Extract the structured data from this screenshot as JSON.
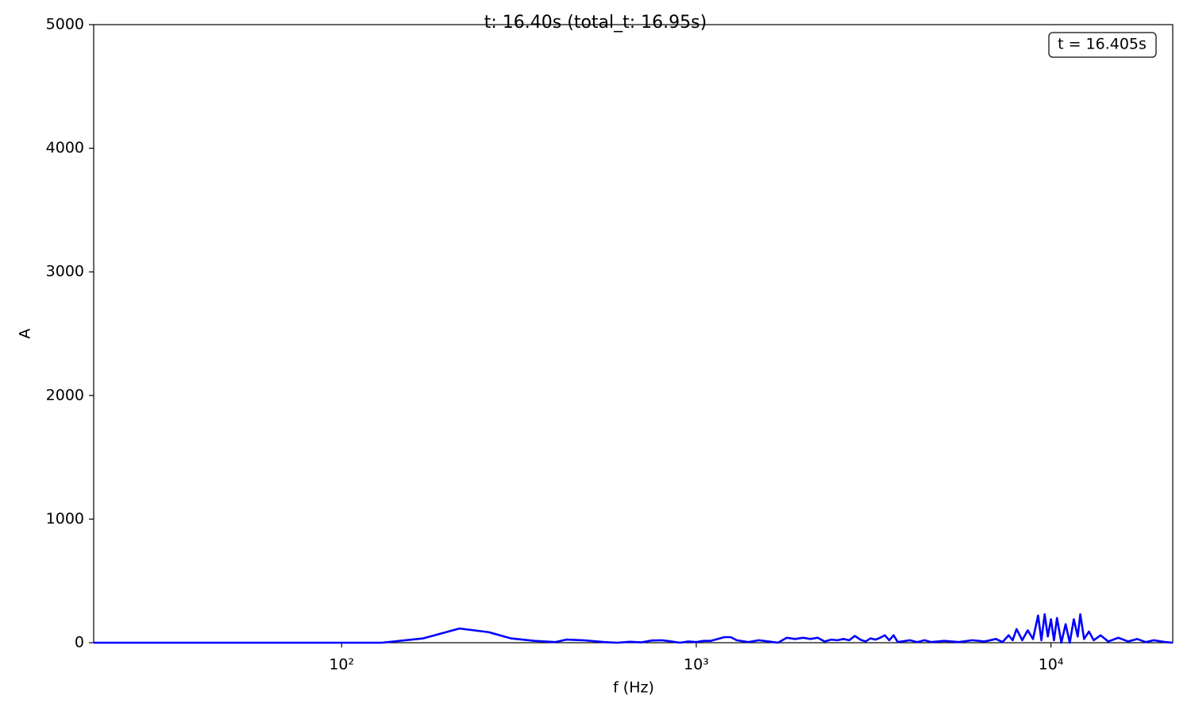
{
  "chart_data": {
    "type": "line",
    "title": "t: 16.40s  (total_t: 16.95s)",
    "annotation": "t = 16.405s",
    "x_label": "f (Hz)",
    "y_label": "A",
    "xscale": "log",
    "color": "#0000ff",
    "xlim": [
      20,
      22050
    ],
    "ylim": [
      0,
      5000
    ],
    "xticks": [
      {
        "value": 100,
        "label": "10²"
      },
      {
        "value": 1000,
        "label": "10³"
      },
      {
        "value": 10000,
        "label": "10⁴"
      }
    ],
    "yticks": [
      0,
      1000,
      2000,
      3000,
      4000,
      5000
    ],
    "grid": false,
    "x": [
      20,
      40,
      60,
      80,
      100,
      130,
      170,
      215,
      260,
      300,
      350,
      400,
      430,
      480,
      550,
      600,
      650,
      700,
      750,
      800,
      850,
      900,
      950,
      1000,
      1050,
      1100,
      1200,
      1250,
      1300,
      1400,
      1500,
      1600,
      1700,
      1800,
      1900,
      2000,
      2100,
      2200,
      2300,
      2400,
      2500,
      2600,
      2700,
      2800,
      2900,
      3000,
      3100,
      3200,
      3300,
      3400,
      3500,
      3600,
      3700,
      3800,
      4000,
      4200,
      4400,
      4600,
      5000,
      5500,
      6000,
      6500,
      7000,
      7300,
      7600,
      7800,
      8000,
      8300,
      8600,
      8900,
      9200,
      9400,
      9600,
      9800,
      10000,
      10200,
      10400,
      10700,
      11000,
      11300,
      11600,
      11900,
      12100,
      12400,
      12800,
      13200,
      13800,
      14500,
      15500,
      16500,
      17500,
      18500,
      19500,
      21000,
      22050
    ],
    "values": [
      0,
      0,
      0,
      0,
      0,
      0,
      35,
      115,
      85,
      35,
      15,
      5,
      25,
      20,
      5,
      0,
      8,
      3,
      18,
      20,
      10,
      0,
      10,
      5,
      15,
      15,
      45,
      45,
      20,
      5,
      20,
      10,
      0,
      40,
      30,
      40,
      30,
      40,
      10,
      25,
      20,
      30,
      20,
      55,
      25,
      10,
      35,
      25,
      40,
      60,
      20,
      60,
      5,
      10,
      20,
      5,
      20,
      5,
      15,
      5,
      20,
      10,
      30,
      5,
      60,
      20,
      110,
      20,
      100,
      30,
      220,
      20,
      230,
      50,
      190,
      20,
      200,
      0,
      150,
      0,
      190,
      50,
      230,
      30,
      90,
      20,
      60,
      10,
      40,
      10,
      30,
      5,
      20,
      5,
      0
    ]
  }
}
